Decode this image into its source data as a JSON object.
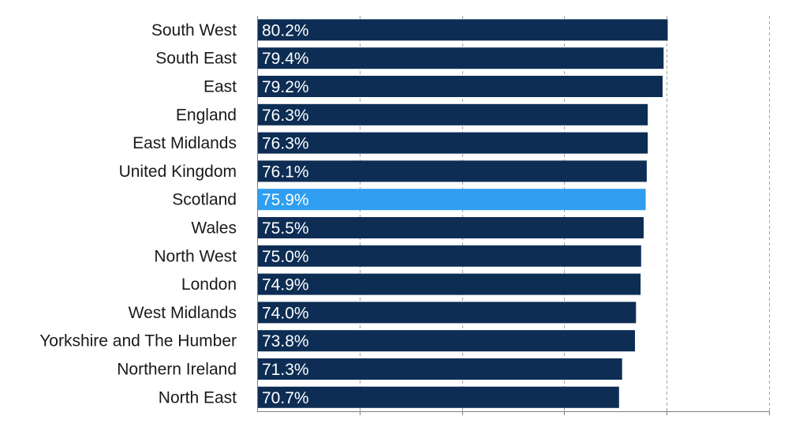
{
  "chart_data": {
    "type": "bar",
    "orientation": "horizontal",
    "categories": [
      "South West",
      "South East",
      "East",
      "England",
      "East Midlands",
      "United Kingdom",
      "Scotland",
      "Wales",
      "North West",
      "London",
      "West Midlands",
      "Yorkshire and The Humber",
      "Northern Ireland",
      "North East"
    ],
    "values": [
      80.2,
      79.4,
      79.2,
      76.3,
      76.3,
      76.1,
      75.9,
      75.5,
      75.0,
      74.9,
      74.0,
      73.8,
      71.3,
      70.7
    ],
    "value_labels": [
      "80.2%",
      "79.4%",
      "79.2%",
      "76.3%",
      "76.3%",
      "76.1%",
      "75.9%",
      "75.5%",
      "75.0%",
      "74.9%",
      "74.0%",
      "73.8%",
      "71.3%",
      "70.7%"
    ],
    "highlight": "Scotland",
    "xlim": [
      0,
      100
    ],
    "grid": "dashed vertical",
    "title": "",
    "xlabel": "",
    "ylabel": ""
  },
  "colors": {
    "bar": "#0d2d54",
    "highlight": "#2f9ef0",
    "grid": "#a6a6a6",
    "axis": "#7f7f7f"
  }
}
